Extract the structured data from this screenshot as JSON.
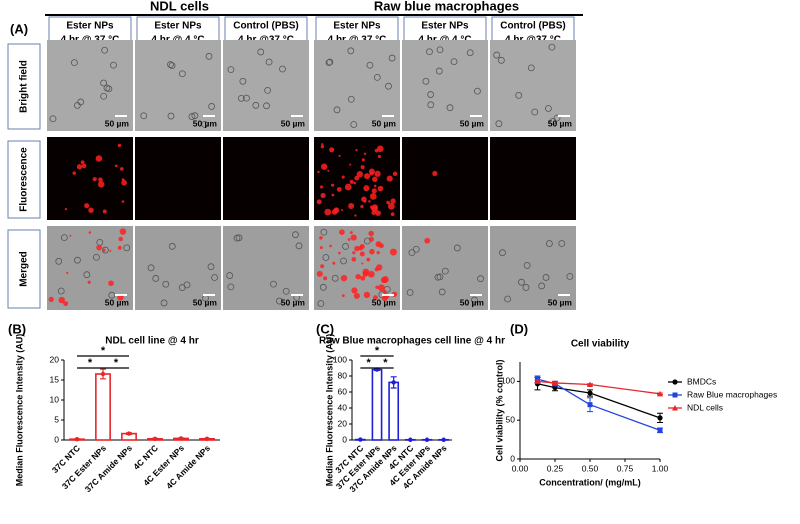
{
  "panel_a": {
    "label": "(A)",
    "groups": [
      {
        "title": "NDL cells",
        "columns": [
          {
            "line1": "Ester NPs",
            "line2": "4 hr @ 37 °C",
            "color": "#e0201c"
          },
          {
            "line1": "Ester NPs",
            "line2": "4 hr @ 4 °C",
            "color": "#1a1aa8"
          },
          {
            "line1": "Control (PBS)",
            "line2": "4 hr @37 °C",
            "color": "#000000"
          }
        ]
      },
      {
        "title": "Raw blue macrophages",
        "columns": [
          {
            "line1": "Ester NPs",
            "line2": "4 hr @ 37 °C",
            "color": "#e0201c"
          },
          {
            "line1": "Ester NPs",
            "line2": "4 hr @ 4 °C",
            "color": "#1a1aa8"
          },
          {
            "line1": "Control (PBS)",
            "line2": "4 hr @37 °C",
            "color": "#000000"
          }
        ]
      }
    ],
    "rows": [
      {
        "label": "Bright field",
        "color": "#4a8a2e"
      },
      {
        "label": "Fluorescence",
        "color": "#d07020"
      },
      {
        "label": "Merged",
        "color": "#7030a0"
      }
    ],
    "scale_bar": "50 µm"
  },
  "chart_data": [
    {
      "type": "bar",
      "panel_label": "(B)",
      "title": "NDL cell line @ 4 hr",
      "y_label": "Median Fluorescence Intensity (AU)",
      "categories": [
        "37C NTC",
        "37C Ester NPs",
        "37C Amide NPs",
        "4C NTC",
        "4C Ester NPs",
        "4C Amide NPs"
      ],
      "values": [
        0.2,
        16.5,
        1.6,
        0.3,
        0.4,
        0.3
      ],
      "errors": [
        0.05,
        1.2,
        0.2,
        0.1,
        0.1,
        0.1
      ],
      "color": "#e8262a",
      "ylim": [
        0,
        20
      ],
      "yticks": [
        0,
        5,
        10,
        15,
        20
      ],
      "significance": [
        {
          "pair": [
            0,
            1
          ],
          "label": "*"
        },
        {
          "pair": [
            0,
            2
          ],
          "label": "*"
        },
        {
          "pair": [
            1,
            2
          ],
          "label": "*"
        }
      ]
    },
    {
      "type": "bar",
      "panel_label": "(C)",
      "title": "Raw Blue macrophages cell line @ 4 hr",
      "y_label": "Median Fluorescence Intensity (AU)",
      "categories": [
        "37C NTC",
        "37C Ester NPs",
        "37C Amide NPs",
        "4C NTC",
        "4C Ester NPs",
        "4C Amide NPs"
      ],
      "values": [
        0.5,
        88,
        72,
        0.3,
        0.3,
        0.3
      ],
      "errors": [
        0.2,
        1,
        7,
        0.1,
        0.1,
        0.1
      ],
      "color": "#1f1fd6",
      "ylim": [
        0,
        100
      ],
      "yticks": [
        0,
        20,
        40,
        60,
        80,
        100
      ],
      "significance": [
        {
          "pair": [
            0,
            1
          ],
          "label": "*"
        },
        {
          "pair": [
            0,
            2
          ],
          "label": "*"
        },
        {
          "pair": [
            1,
            2
          ],
          "label": "*"
        }
      ]
    },
    {
      "type": "line",
      "panel_label": "(D)",
      "title": "Cell viability",
      "x_label": "Concentration/ (mg/mL)",
      "y_label": "Cell viability (% control)",
      "x": [
        0.125,
        0.25,
        0.5,
        1.0
      ],
      "series": [
        {
          "name": "BMDCs",
          "color": "#000000",
          "marker": "circle",
          "values": [
            97,
            92,
            85,
            53
          ],
          "errors": [
            8,
            4,
            4,
            6
          ]
        },
        {
          "name": "Raw Blue macrophages",
          "color": "#2244dd",
          "marker": "square",
          "values": [
            103,
            97,
            70,
            37
          ],
          "errors": [
            4,
            3,
            9,
            3
          ]
        },
        {
          "name": "NDL cells",
          "color": "#e8262a",
          "marker": "triangle",
          "values": [
            100,
            98,
            96,
            84
          ],
          "errors": [
            2,
            2,
            1,
            1
          ]
        }
      ],
      "xlim": [
        0,
        1.0
      ],
      "xticks": [
        {
          "value": 0,
          "label": "0.00"
        },
        0.25,
        {
          "value": 0.5,
          "label": "0.50"
        },
        0.75,
        {
          "value": 1.0,
          "label": "1.00"
        }
      ],
      "ylim": [
        0,
        125
      ],
      "yticks": [
        0,
        50,
        100
      ],
      "legend": "right"
    }
  ]
}
